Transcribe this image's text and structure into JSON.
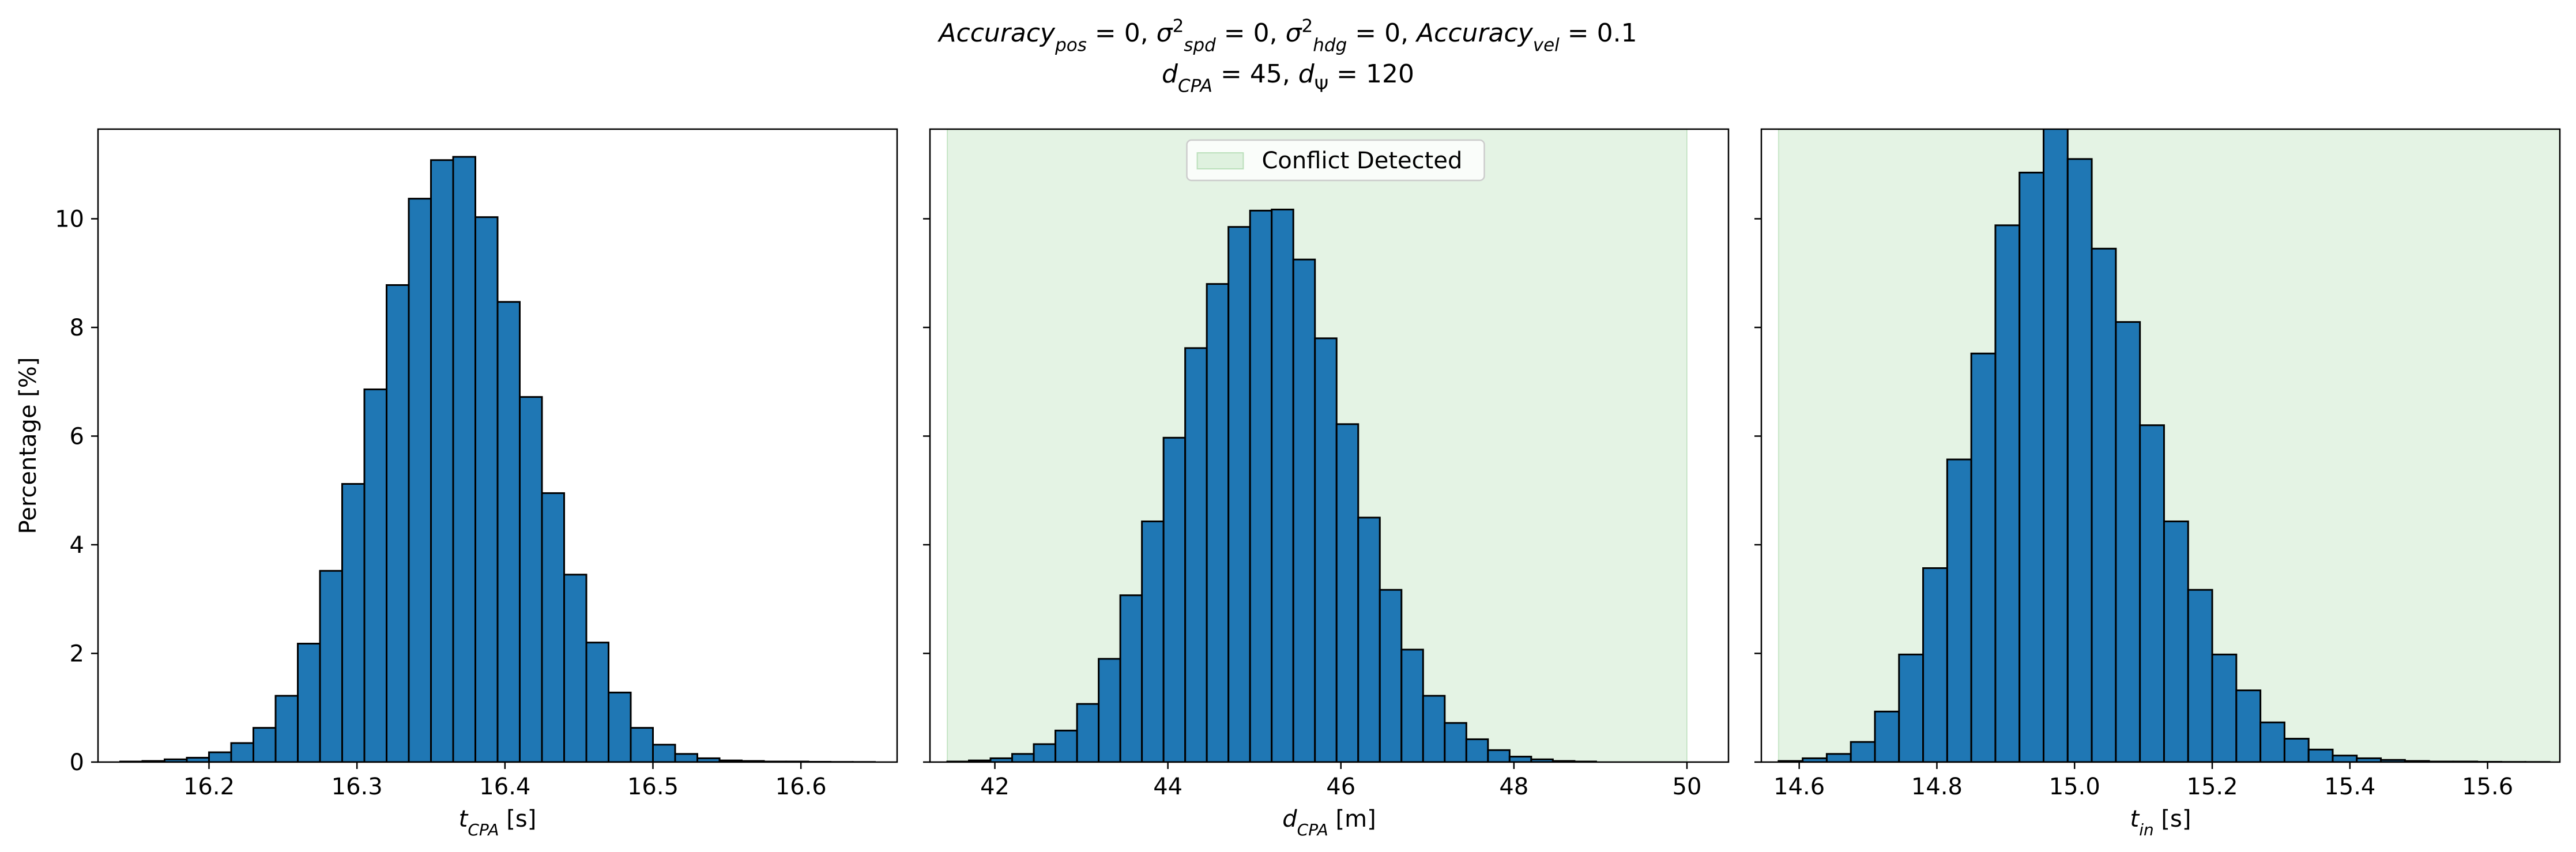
{
  "figure": {
    "title_lines": [
      [
        {
          "t": "Accuracy",
          "i": true
        },
        {
          "t": "pos",
          "i": true,
          "s": "sub"
        },
        {
          "t": " = 0, "
        },
        {
          "t": "σ",
          "i": true
        },
        {
          "t": "2",
          "s": "sup"
        },
        {
          "t": "spd",
          "i": true,
          "s": "sub"
        },
        {
          "t": " = 0, "
        },
        {
          "t": "σ",
          "i": true
        },
        {
          "t": "2",
          "s": "sup"
        },
        {
          "t": "hdg",
          "i": true,
          "s": "sub"
        },
        {
          "t": " = 0, "
        },
        {
          "t": "Accuracy",
          "i": true
        },
        {
          "t": "vel",
          "i": true,
          "s": "sub"
        },
        {
          "t": " = 0.1"
        }
      ],
      [
        {
          "t": "d",
          "i": true
        },
        {
          "t": "CPA",
          "i": true,
          "s": "sub"
        },
        {
          "t": " = 45, "
        },
        {
          "t": "d",
          "i": true
        },
        {
          "t": "Ψ",
          "s": "sub"
        },
        {
          "t": " = 120"
        }
      ]
    ],
    "bar_color": "#1f77b4",
    "edge_color": "#000000",
    "shade_color": "#2ca02c"
  },
  "chart_data": [
    {
      "type": "bar",
      "ylabel": "Percentage [%]",
      "xlabel": [
        {
          "t": "t",
          "i": true
        },
        {
          "t": "CPA",
          "i": true,
          "s": "sub"
        },
        {
          "t": " [s]"
        }
      ],
      "xlim": [
        16.125,
        16.665
      ],
      "ylim": [
        0,
        11.65
      ],
      "xticks": [
        16.2,
        16.3,
        16.4,
        16.5,
        16.6
      ],
      "yticks": [
        0,
        2,
        4,
        6,
        8,
        10
      ],
      "bin_edges": [
        16.14,
        16.155,
        16.17,
        16.185,
        16.2,
        16.215,
        16.23,
        16.245,
        16.26,
        16.275,
        16.29,
        16.305,
        16.32,
        16.335,
        16.35,
        16.365,
        16.38,
        16.395,
        16.41,
        16.425,
        16.44,
        16.455,
        16.47,
        16.485,
        16.5,
        16.515,
        16.53,
        16.545,
        16.56,
        16.575,
        16.59,
        16.605,
        16.62,
        16.635,
        16.65
      ],
      "values": [
        0.01,
        0.02,
        0.05,
        0.08,
        0.18,
        0.35,
        0.63,
        1.22,
        2.18,
        3.52,
        5.12,
        6.86,
        8.78,
        10.37,
        11.08,
        11.14,
        10.03,
        8.47,
        6.72,
        4.95,
        3.45,
        2.2,
        1.28,
        0.63,
        0.32,
        0.15,
        0.07,
        0.03,
        0.02,
        0.01,
        0.01,
        0.005,
        0.003,
        0.002
      ]
    },
    {
      "type": "bar",
      "ylabel": "",
      "xlabel": [
        {
          "t": "d",
          "i": true
        },
        {
          "t": "CPA",
          "i": true,
          "s": "sub"
        },
        {
          "t": " [m]"
        }
      ],
      "xlim": [
        41.25,
        50.48
      ],
      "ylim": [
        0,
        11.65
      ],
      "xticks": [
        42,
        44,
        46,
        48,
        50
      ],
      "yticks": [
        0,
        2,
        4,
        6,
        8,
        10
      ],
      "shade": [
        41.45,
        50.0
      ],
      "legend": {
        "label": "Conflict Detected",
        "position": "top-center"
      },
      "bin_edges": [
        41.45,
        41.7,
        41.95,
        42.2,
        42.45,
        42.7,
        42.95,
        43.2,
        43.45,
        43.7,
        43.95,
        44.2,
        44.45,
        44.7,
        44.95,
        45.2,
        45.45,
        45.7,
        45.95,
        46.2,
        46.45,
        46.7,
        46.95,
        47.2,
        47.45,
        47.7,
        47.95,
        48.2,
        48.45,
        48.7,
        48.95
      ],
      "values": [
        0.01,
        0.03,
        0.07,
        0.15,
        0.33,
        0.58,
        1.07,
        1.9,
        3.07,
        4.43,
        5.97,
        7.62,
        8.8,
        9.85,
        10.15,
        10.17,
        9.25,
        7.8,
        6.22,
        4.5,
        3.17,
        2.07,
        1.22,
        0.72,
        0.42,
        0.22,
        0.1,
        0.05,
        0.02,
        0.01
      ]
    },
    {
      "type": "bar",
      "ylabel": "",
      "xlabel": [
        {
          "t": "t",
          "i": true
        },
        {
          "t": "in",
          "i": true,
          "s": "sub"
        },
        {
          "t": " [s]"
        }
      ],
      "xlim": [
        14.545,
        15.705
      ],
      "ylim": [
        0,
        11.65
      ],
      "xticks": [
        14.6,
        14.8,
        15.0,
        15.2,
        15.4,
        15.6
      ],
      "yticks": [
        0,
        2,
        4,
        6,
        8,
        10
      ],
      "shade": [
        14.57,
        15.705
      ],
      "bin_edges": [
        14.57,
        14.605,
        14.64,
        14.675,
        14.71,
        14.745,
        14.78,
        14.815,
        14.85,
        14.885,
        14.92,
        14.955,
        14.99,
        15.025,
        15.06,
        15.095,
        15.13,
        15.165,
        15.2,
        15.235,
        15.27,
        15.305,
        15.34,
        15.375,
        15.41,
        15.445,
        15.48,
        15.515,
        15.55,
        15.585,
        15.62,
        15.655,
        15.69
      ],
      "values": [
        0.02,
        0.07,
        0.15,
        0.37,
        0.93,
        1.98,
        3.57,
        5.57,
        7.52,
        9.88,
        10.85,
        11.8,
        11.1,
        9.45,
        8.1,
        6.2,
        4.43,
        3.17,
        1.98,
        1.32,
        0.73,
        0.43,
        0.23,
        0.12,
        0.07,
        0.04,
        0.02,
        0.01,
        0.01,
        0.005,
        0.003,
        0.002
      ]
    }
  ]
}
